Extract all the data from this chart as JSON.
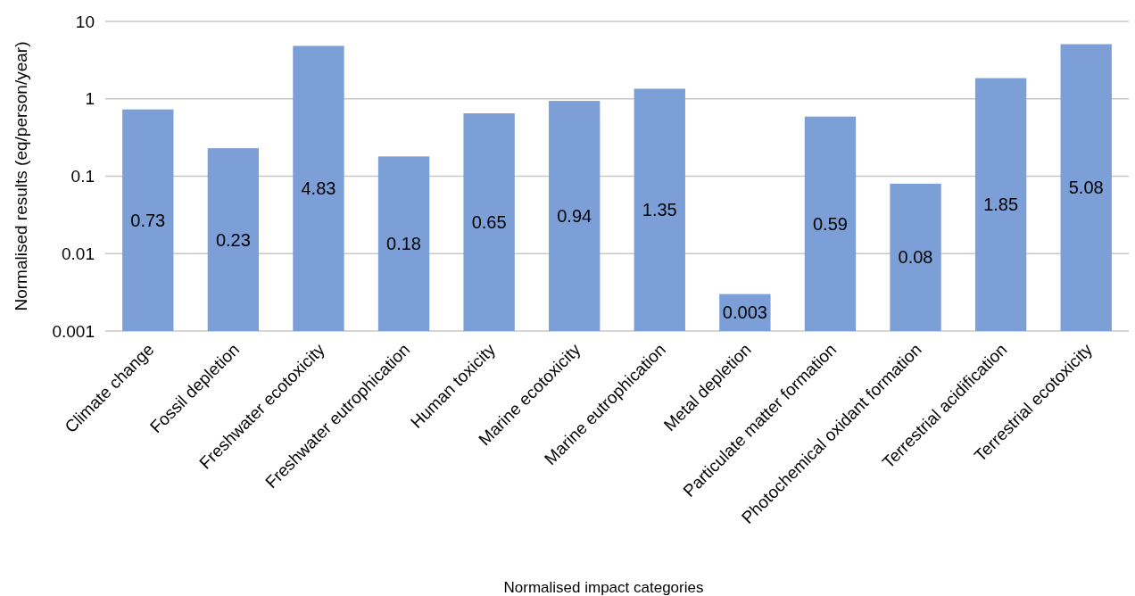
{
  "chart_data": {
    "type": "bar",
    "xlabel": "Normalised impact categories",
    "ylabel": "Normalised results (eq/person/year)",
    "categories": [
      "Climate change",
      "Fossil depletion",
      "Freshwater ecotoxicity",
      "Freshwater eutrophication",
      "Human toxicity",
      "Marine ecotoxicity",
      "Marine eutrophication",
      "Metal depletion",
      "Particulate matter formation",
      "Photochemical oxidant formation",
      "Terrestrial acidification",
      "Terrestrial ecotoxicity"
    ],
    "values": [
      0.73,
      0.23,
      4.83,
      0.18,
      0.65,
      0.94,
      1.35,
      0.003,
      0.59,
      0.08,
      1.85,
      5.08
    ],
    "color": "#7b9fd6",
    "log": true,
    "ylim": [
      0.001,
      10
    ],
    "yticks": [
      0.001,
      0.01,
      0.1,
      1,
      10
    ],
    "grid": "y",
    "data_labels": true
  }
}
